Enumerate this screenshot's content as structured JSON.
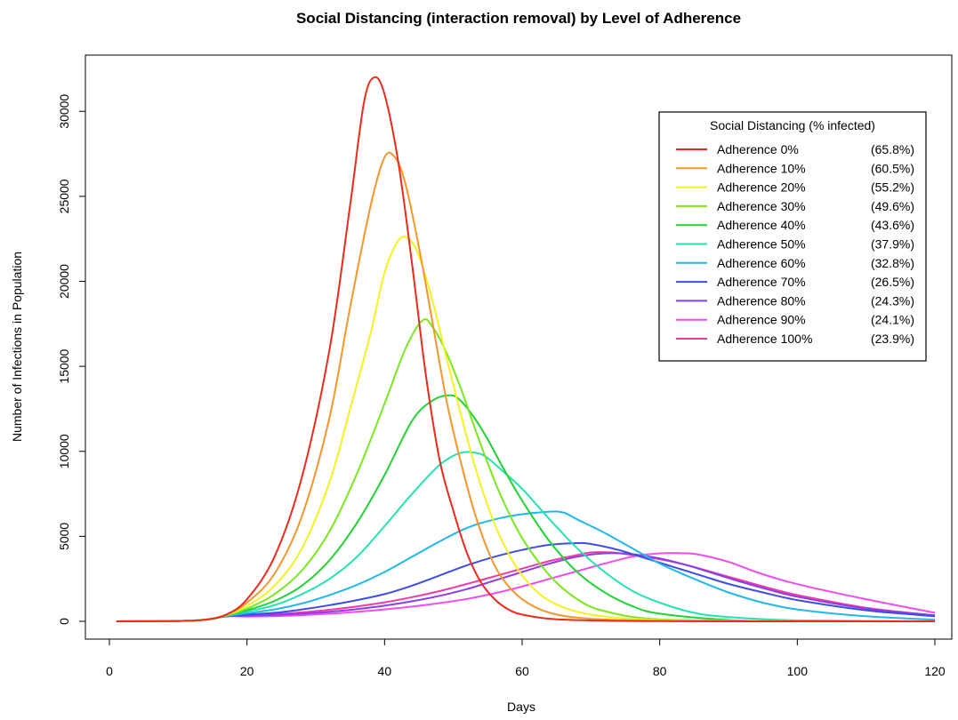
{
  "chart_data": {
    "type": "line",
    "title": "Social Distancing (interaction removal) by Level of Adherence",
    "xlabel": "Days",
    "ylabel": "Number of Infections in Population",
    "xlim": [
      0,
      120
    ],
    "ylim": [
      0,
      32000
    ],
    "x_ticks": [
      0,
      20,
      40,
      60,
      80,
      100,
      120
    ],
    "y_ticks": [
      0,
      5000,
      10000,
      15000,
      20000,
      25000,
      30000
    ],
    "grid": false,
    "legend": {
      "title": "Social Distancing (% infected)",
      "placement": "top-right"
    },
    "series": [
      {
        "name": "Adherence 0%",
        "pct": "(65.8%)",
        "color": "#ee2a1c",
        "points": [
          [
            1,
            0
          ],
          [
            10,
            20
          ],
          [
            14,
            100
          ],
          [
            17,
            400
          ],
          [
            20,
            1300
          ],
          [
            24,
            3800
          ],
          [
            28,
            8500
          ],
          [
            32,
            16000
          ],
          [
            35,
            24500
          ],
          [
            37,
            30500
          ],
          [
            38.5,
            32000
          ],
          [
            40,
            31000
          ],
          [
            42,
            27000
          ],
          [
            44,
            21000
          ],
          [
            46,
            14500
          ],
          [
            48,
            9500
          ],
          [
            50,
            6500
          ],
          [
            52,
            4000
          ],
          [
            54,
            2300
          ],
          [
            56,
            1300
          ],
          [
            58,
            700
          ],
          [
            60,
            400
          ],
          [
            64,
            150
          ],
          [
            70,
            50
          ],
          [
            80,
            10
          ],
          [
            100,
            0
          ],
          [
            120,
            0
          ]
        ]
      },
      {
        "name": "Adherence 10%",
        "pct": "(60.5%)",
        "color": "#f7962a",
        "points": [
          [
            1,
            0
          ],
          [
            10,
            20
          ],
          [
            14,
            100
          ],
          [
            17,
            400
          ],
          [
            20,
            1100
          ],
          [
            24,
            2800
          ],
          [
            28,
            6200
          ],
          [
            32,
            12000
          ],
          [
            35,
            18500
          ],
          [
            38,
            24500
          ],
          [
            40,
            27300
          ],
          [
            41.5,
            27300
          ],
          [
            43,
            25800
          ],
          [
            45,
            22000
          ],
          [
            47,
            17500
          ],
          [
            49,
            13000
          ],
          [
            51,
            9500
          ],
          [
            53,
            6500
          ],
          [
            55,
            4200
          ],
          [
            57,
            2600
          ],
          [
            60,
            1300
          ],
          [
            64,
            500
          ],
          [
            70,
            150
          ],
          [
            80,
            30
          ],
          [
            100,
            0
          ],
          [
            120,
            0
          ]
        ]
      },
      {
        "name": "Adherence 20%",
        "pct": "(55.2%)",
        "color": "#f4f21f",
        "points": [
          [
            1,
            0
          ],
          [
            10,
            20
          ],
          [
            14,
            100
          ],
          [
            17,
            380
          ],
          [
            20,
            900
          ],
          [
            24,
            2100
          ],
          [
            28,
            4300
          ],
          [
            32,
            8200
          ],
          [
            35,
            12500
          ],
          [
            38,
            17000
          ],
          [
            40,
            20500
          ],
          [
            42,
            22400
          ],
          [
            43.5,
            22500
          ],
          [
            45,
            21500
          ],
          [
            47,
            18800
          ],
          [
            49,
            15500
          ],
          [
            51,
            12300
          ],
          [
            53,
            9300
          ],
          [
            55,
            6800
          ],
          [
            57,
            4800
          ],
          [
            60,
            2700
          ],
          [
            64,
            1200
          ],
          [
            70,
            400
          ],
          [
            80,
            80
          ],
          [
            100,
            5
          ],
          [
            120,
            0
          ]
        ]
      },
      {
        "name": "Adherence 30%",
        "pct": "(49.6%)",
        "color": "#79e81e",
        "points": [
          [
            1,
            0
          ],
          [
            10,
            20
          ],
          [
            14,
            100
          ],
          [
            17,
            360
          ],
          [
            20,
            750
          ],
          [
            24,
            1600
          ],
          [
            28,
            3000
          ],
          [
            32,
            5300
          ],
          [
            36,
            8700
          ],
          [
            40,
            12800
          ],
          [
            43,
            16000
          ],
          [
            45.5,
            17700
          ],
          [
            47,
            17300
          ],
          [
            49,
            15800
          ],
          [
            51,
            13800
          ],
          [
            53,
            11500
          ],
          [
            55,
            9300
          ],
          [
            57,
            7300
          ],
          [
            60,
            4900
          ],
          [
            64,
            2700
          ],
          [
            68,
            1300
          ],
          [
            72,
            600
          ],
          [
            80,
            120
          ],
          [
            100,
            10
          ],
          [
            120,
            0
          ]
        ]
      },
      {
        "name": "Adherence 40%",
        "pct": "(43.6%)",
        "color": "#22d336",
        "points": [
          [
            1,
            0
          ],
          [
            10,
            20
          ],
          [
            14,
            100
          ],
          [
            17,
            340
          ],
          [
            20,
            650
          ],
          [
            24,
            1200
          ],
          [
            28,
            2100
          ],
          [
            32,
            3600
          ],
          [
            36,
            5800
          ],
          [
            40,
            8600
          ],
          [
            44,
            11800
          ],
          [
            47,
            13000
          ],
          [
            49.5,
            13300
          ],
          [
            51,
            13000
          ],
          [
            53,
            12000
          ],
          [
            55,
            10700
          ],
          [
            57,
            9200
          ],
          [
            60,
            7100
          ],
          [
            64,
            4700
          ],
          [
            68,
            2900
          ],
          [
            72,
            1700
          ],
          [
            76,
            900
          ],
          [
            80,
            450
          ],
          [
            90,
            80
          ],
          [
            100,
            15
          ],
          [
            120,
            0
          ]
        ]
      },
      {
        "name": "Adherence 50%",
        "pct": "(37.9%)",
        "color": "#23e3b0",
        "points": [
          [
            1,
            0
          ],
          [
            10,
            20
          ],
          [
            14,
            100
          ],
          [
            17,
            330
          ],
          [
            20,
            580
          ],
          [
            24,
            950
          ],
          [
            28,
            1600
          ],
          [
            32,
            2500
          ],
          [
            36,
            3800
          ],
          [
            40,
            5600
          ],
          [
            44,
            7500
          ],
          [
            48,
            9200
          ],
          [
            51,
            9900
          ],
          [
            53.5,
            9900
          ],
          [
            55,
            9600
          ],
          [
            57,
            8900
          ],
          [
            60,
            7800
          ],
          [
            64,
            6000
          ],
          [
            68,
            4300
          ],
          [
            72,
            2900
          ],
          [
            76,
            1800
          ],
          [
            80,
            1100
          ],
          [
            85,
            500
          ],
          [
            90,
            250
          ],
          [
            100,
            60
          ],
          [
            120,
            5
          ]
        ]
      },
      {
        "name": "Adherence 60%",
        "pct": "(32.8%)",
        "color": "#21b8ee",
        "points": [
          [
            1,
            0
          ],
          [
            10,
            20
          ],
          [
            14,
            100
          ],
          [
            17,
            320
          ],
          [
            20,
            480
          ],
          [
            24,
            700
          ],
          [
            28,
            1050
          ],
          [
            32,
            1550
          ],
          [
            36,
            2150
          ],
          [
            40,
            2900
          ],
          [
            44,
            3800
          ],
          [
            48,
            4700
          ],
          [
            52,
            5500
          ],
          [
            56,
            6000
          ],
          [
            60,
            6300
          ],
          [
            64,
            6450
          ],
          [
            66,
            6400
          ],
          [
            68,
            6000
          ],
          [
            72,
            5200
          ],
          [
            76,
            4300
          ],
          [
            80,
            3400
          ],
          [
            85,
            2500
          ],
          [
            90,
            1700
          ],
          [
            95,
            1100
          ],
          [
            100,
            700
          ],
          [
            110,
            300
          ],
          [
            120,
            100
          ]
        ]
      },
      {
        "name": "Adherence 70%",
        "pct": "(26.5%)",
        "color": "#3c4ee6",
        "points": [
          [
            1,
            0
          ],
          [
            10,
            20
          ],
          [
            14,
            100
          ],
          [
            17,
            310
          ],
          [
            20,
            400
          ],
          [
            24,
            500
          ],
          [
            28,
            700
          ],
          [
            32,
            950
          ],
          [
            36,
            1250
          ],
          [
            40,
            1600
          ],
          [
            44,
            2100
          ],
          [
            48,
            2700
          ],
          [
            52,
            3300
          ],
          [
            56,
            3800
          ],
          [
            60,
            4200
          ],
          [
            64,
            4500
          ],
          [
            68,
            4600
          ],
          [
            70,
            4550
          ],
          [
            74,
            4200
          ],
          [
            78,
            3700
          ],
          [
            82,
            3200
          ],
          [
            86,
            2700
          ],
          [
            90,
            2200
          ],
          [
            95,
            1700
          ],
          [
            100,
            1250
          ],
          [
            110,
            650
          ],
          [
            120,
            300
          ]
        ]
      },
      {
        "name": "Adherence 80%",
        "pct": "(24.3%)",
        "color": "#8a3de9",
        "points": [
          [
            1,
            0
          ],
          [
            10,
            20
          ],
          [
            14,
            100
          ],
          [
            17,
            300
          ],
          [
            20,
            330
          ],
          [
            24,
            380
          ],
          [
            28,
            450
          ],
          [
            32,
            560
          ],
          [
            36,
            720
          ],
          [
            40,
            920
          ],
          [
            44,
            1180
          ],
          [
            48,
            1500
          ],
          [
            52,
            1900
          ],
          [
            56,
            2400
          ],
          [
            60,
            2900
          ],
          [
            64,
            3400
          ],
          [
            68,
            3800
          ],
          [
            72,
            4000
          ],
          [
            76,
            3950
          ],
          [
            80,
            3700
          ],
          [
            84,
            3300
          ],
          [
            88,
            2800
          ],
          [
            92,
            2300
          ],
          [
            96,
            1850
          ],
          [
            100,
            1450
          ],
          [
            110,
            750
          ],
          [
            120,
            350
          ]
        ]
      },
      {
        "name": "Adherence 90%",
        "pct": "(24.1%)",
        "color": "#f04cf2",
        "points": [
          [
            1,
            0
          ],
          [
            10,
            20
          ],
          [
            14,
            100
          ],
          [
            17,
            290
          ],
          [
            20,
            280
          ],
          [
            24,
            300
          ],
          [
            28,
            360
          ],
          [
            32,
            450
          ],
          [
            36,
            560
          ],
          [
            40,
            700
          ],
          [
            44,
            870
          ],
          [
            48,
            1070
          ],
          [
            52,
            1320
          ],
          [
            56,
            1650
          ],
          [
            60,
            2050
          ],
          [
            64,
            2500
          ],
          [
            68,
            2950
          ],
          [
            72,
            3400
          ],
          [
            76,
            3800
          ],
          [
            80,
            4000
          ],
          [
            84,
            4000
          ],
          [
            86,
            3900
          ],
          [
            90,
            3500
          ],
          [
            94,
            2900
          ],
          [
            98,
            2400
          ],
          [
            102,
            2000
          ],
          [
            110,
            1300
          ],
          [
            120,
            500
          ]
        ]
      },
      {
        "name": "Adherence 100%",
        "pct": "(23.9%)",
        "color": "#f03aa6",
        "points": [
          [
            1,
            0
          ],
          [
            10,
            20
          ],
          [
            14,
            100
          ],
          [
            17,
            300
          ],
          [
            20,
            340
          ],
          [
            24,
            420
          ],
          [
            28,
            530
          ],
          [
            32,
            680
          ],
          [
            36,
            880
          ],
          [
            40,
            1120
          ],
          [
            44,
            1420
          ],
          [
            48,
            1780
          ],
          [
            52,
            2200
          ],
          [
            56,
            2650
          ],
          [
            60,
            3100
          ],
          [
            64,
            3550
          ],
          [
            68,
            3900
          ],
          [
            70,
            4050
          ],
          [
            73,
            4050
          ],
          [
            76,
            3900
          ],
          [
            80,
            3650
          ],
          [
            84,
            3300
          ],
          [
            88,
            2850
          ],
          [
            92,
            2400
          ],
          [
            96,
            1950
          ],
          [
            100,
            1550
          ],
          [
            110,
            800
          ],
          [
            120,
            350
          ]
        ]
      }
    ]
  }
}
